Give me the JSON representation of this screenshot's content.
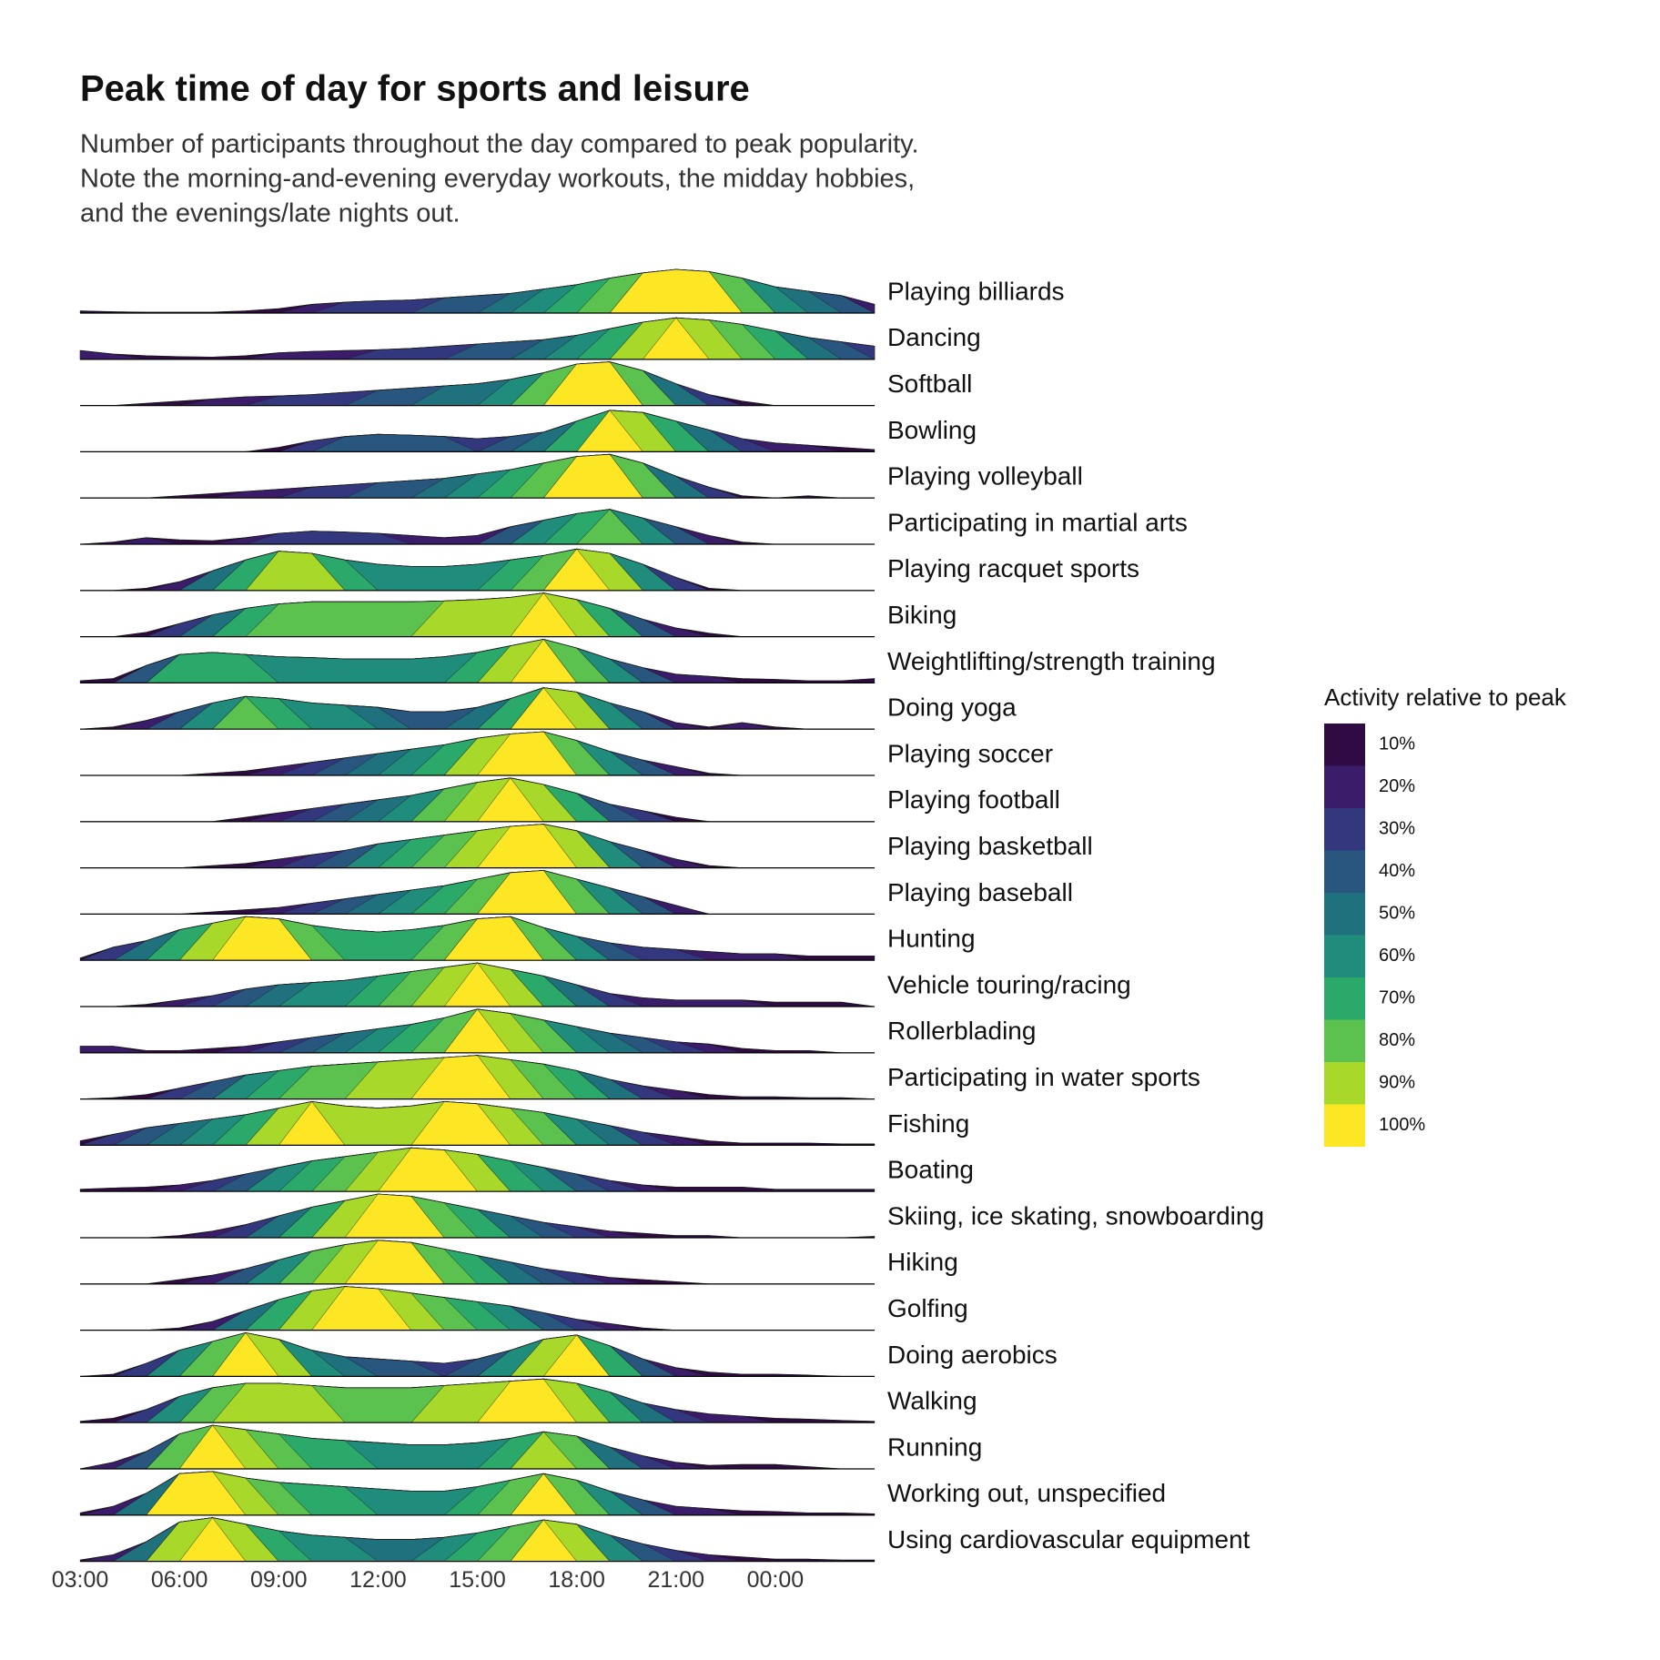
{
  "chart_data": {
    "type": "ridgeline",
    "title": "Peak time of day for sports and leisure",
    "subtitle": [
      "Number of participants throughout the day compared to peak popularity.",
      "Note the morning-and-evening everyday workouts, the midday hobbies,",
      "and the evenings/late nights out."
    ],
    "x": [
      3,
      4,
      5,
      6,
      7,
      8,
      9,
      10,
      11,
      12,
      13,
      14,
      15,
      16,
      17,
      18,
      19,
      20,
      21,
      22,
      23,
      24,
      25,
      26,
      27
    ],
    "xlim": [
      3,
      27
    ],
    "xticks": [
      {
        "value": 3,
        "label": "03:00"
      },
      {
        "value": 6,
        "label": "06:00"
      },
      {
        "value": 9,
        "label": "09:00"
      },
      {
        "value": 12,
        "label": "12:00"
      },
      {
        "value": 15,
        "label": "15:00"
      },
      {
        "value": 18,
        "label": "18:00"
      },
      {
        "value": 21,
        "label": "21:00"
      },
      {
        "value": 24,
        "label": "00:00"
      }
    ],
    "ylim": [
      0,
      100
    ],
    "series": [
      {
        "name": "Playing billiards",
        "values": [
          5,
          3,
          2,
          2,
          2,
          5,
          10,
          20,
          25,
          28,
          30,
          35,
          40,
          45,
          55,
          65,
          80,
          92,
          100,
          95,
          80,
          60,
          50,
          40,
          20
        ]
      },
      {
        "name": "Dancing",
        "values": [
          20,
          12,
          8,
          6,
          5,
          8,
          15,
          18,
          20,
          22,
          25,
          30,
          35,
          40,
          45,
          55,
          70,
          85,
          95,
          90,
          80,
          65,
          50,
          40,
          30
        ]
      },
      {
        "name": "Softball",
        "values": [
          0,
          0,
          5,
          10,
          15,
          20,
          22,
          25,
          30,
          35,
          40,
          45,
          50,
          60,
          75,
          95,
          100,
          80,
          50,
          25,
          10,
          0,
          0,
          0,
          0
        ]
      },
      {
        "name": "Bowling",
        "values": [
          0,
          0,
          0,
          0,
          0,
          0,
          10,
          25,
          35,
          40,
          38,
          35,
          30,
          35,
          45,
          70,
          95,
          90,
          70,
          50,
          30,
          20,
          15,
          10,
          5
        ]
      },
      {
        "name": "Playing volleyball",
        "values": [
          0,
          0,
          0,
          5,
          10,
          15,
          20,
          25,
          30,
          35,
          40,
          45,
          55,
          65,
          80,
          95,
          100,
          80,
          50,
          25,
          5,
          0,
          5,
          0,
          0
        ]
      },
      {
        "name": "Participating in martial arts",
        "values": [
          0,
          5,
          15,
          10,
          8,
          15,
          25,
          30,
          28,
          25,
          20,
          15,
          20,
          40,
          55,
          70,
          80,
          60,
          40,
          20,
          5,
          0,
          0,
          0,
          0
        ]
      },
      {
        "name": "Playing racquet sports",
        "values": [
          0,
          0,
          5,
          20,
          45,
          70,
          90,
          85,
          70,
          60,
          55,
          55,
          60,
          70,
          80,
          95,
          85,
          60,
          30,
          5,
          0,
          0,
          0,
          0,
          0
        ]
      },
      {
        "name": "Biking",
        "values": [
          0,
          0,
          10,
          30,
          50,
          65,
          75,
          80,
          80,
          80,
          80,
          82,
          85,
          90,
          100,
          85,
          65,
          40,
          20,
          8,
          0,
          0,
          0,
          0,
          0
        ]
      },
      {
        "name": "Weightlifting/strength training",
        "values": [
          5,
          10,
          40,
          65,
          70,
          65,
          60,
          58,
          55,
          55,
          55,
          60,
          70,
          85,
          100,
          80,
          55,
          35,
          20,
          15,
          10,
          8,
          5,
          5,
          10
        ]
      },
      {
        "name": "Doing yoga",
        "values": [
          0,
          5,
          20,
          40,
          60,
          75,
          70,
          60,
          55,
          50,
          40,
          40,
          50,
          70,
          95,
          85,
          60,
          40,
          15,
          5,
          15,
          5,
          0,
          0,
          0
        ]
      },
      {
        "name": "Playing soccer",
        "values": [
          0,
          0,
          0,
          0,
          5,
          10,
          20,
          30,
          40,
          50,
          60,
          70,
          85,
          95,
          100,
          80,
          55,
          35,
          20,
          5,
          0,
          0,
          0,
          0,
          0
        ]
      },
      {
        "name": "Playing football",
        "values": [
          0,
          0,
          0,
          0,
          0,
          10,
          20,
          30,
          40,
          50,
          60,
          75,
          90,
          100,
          85,
          65,
          40,
          25,
          10,
          0,
          0,
          0,
          0,
          0,
          0
        ]
      },
      {
        "name": "Playing basketball",
        "values": [
          0,
          0,
          0,
          0,
          5,
          10,
          20,
          30,
          40,
          55,
          65,
          75,
          85,
          95,
          100,
          85,
          60,
          40,
          20,
          5,
          0,
          0,
          0,
          0,
          0
        ]
      },
      {
        "name": "Playing baseball",
        "values": [
          0,
          0,
          0,
          0,
          5,
          10,
          15,
          25,
          35,
          45,
          55,
          65,
          80,
          95,
          100,
          80,
          60,
          40,
          20,
          0,
          0,
          0,
          0,
          0,
          0
        ]
      },
      {
        "name": "Hunting",
        "values": [
          5,
          30,
          45,
          70,
          85,
          100,
          95,
          80,
          70,
          65,
          70,
          80,
          95,
          100,
          75,
          55,
          40,
          30,
          25,
          20,
          15,
          15,
          10,
          10,
          10
        ]
      },
      {
        "name": "Vehicle touring/racing",
        "values": [
          0,
          0,
          5,
          15,
          25,
          40,
          50,
          55,
          60,
          70,
          80,
          90,
          100,
          85,
          70,
          50,
          30,
          20,
          15,
          15,
          15,
          10,
          10,
          10,
          0
        ]
      },
      {
        "name": "Rollerblading",
        "values": [
          15,
          15,
          5,
          5,
          10,
          15,
          25,
          35,
          45,
          55,
          65,
          80,
          100,
          90,
          75,
          60,
          45,
          35,
          25,
          20,
          10,
          5,
          5,
          0,
          0
        ]
      },
      {
        "name": "Participating in water sports",
        "values": [
          0,
          3,
          10,
          25,
          40,
          55,
          65,
          75,
          80,
          85,
          90,
          95,
          100,
          90,
          80,
          65,
          45,
          30,
          20,
          10,
          5,
          5,
          3,
          3,
          0
        ]
      },
      {
        "name": "Fishing",
        "values": [
          10,
          25,
          40,
          50,
          60,
          70,
          85,
          100,
          90,
          85,
          90,
          100,
          95,
          85,
          75,
          60,
          45,
          30,
          20,
          10,
          5,
          5,
          5,
          3,
          3
        ]
      },
      {
        "name": "Boating",
        "values": [
          5,
          8,
          10,
          15,
          25,
          40,
          55,
          70,
          80,
          90,
          100,
          95,
          85,
          70,
          55,
          40,
          25,
          15,
          10,
          10,
          10,
          5,
          5,
          5,
          5
        ]
      },
      {
        "name": "Skiing, ice skating, snowboarding",
        "values": [
          0,
          0,
          0,
          5,
          15,
          30,
          50,
          70,
          85,
          100,
          95,
          80,
          65,
          50,
          35,
          25,
          15,
          10,
          5,
          5,
          0,
          0,
          0,
          0,
          3
        ]
      },
      {
        "name": "Hiking",
        "values": [
          0,
          0,
          0,
          10,
          20,
          35,
          55,
          75,
          90,
          100,
          95,
          80,
          65,
          50,
          35,
          25,
          15,
          10,
          5,
          0,
          0,
          0,
          0,
          0,
          0
        ]
      },
      {
        "name": "Golfing",
        "values": [
          0,
          0,
          0,
          5,
          20,
          45,
          70,
          90,
          100,
          95,
          85,
          75,
          65,
          55,
          40,
          25,
          15,
          5,
          0,
          0,
          0,
          0,
          0,
          0,
          0
        ]
      },
      {
        "name": "Doing aerobics",
        "values": [
          0,
          5,
          30,
          60,
          80,
          100,
          85,
          60,
          45,
          40,
          35,
          30,
          40,
          60,
          85,
          95,
          70,
          40,
          20,
          10,
          5,
          5,
          3,
          0,
          0
        ]
      },
      {
        "name": "Walking",
        "values": [
          3,
          10,
          30,
          60,
          80,
          90,
          90,
          85,
          80,
          80,
          80,
          85,
          90,
          95,
          100,
          90,
          70,
          45,
          30,
          20,
          15,
          10,
          8,
          5,
          3
        ]
      },
      {
        "name": "Running",
        "values": [
          0,
          15,
          40,
          80,
          100,
          90,
          80,
          70,
          65,
          60,
          55,
          55,
          60,
          70,
          85,
          75,
          50,
          30,
          15,
          8,
          10,
          10,
          5,
          0,
          0
        ]
      },
      {
        "name": "Working out, unspecified",
        "values": [
          5,
          20,
          50,
          95,
          100,
          85,
          75,
          70,
          65,
          60,
          55,
          55,
          65,
          80,
          95,
          80,
          55,
          35,
          20,
          15,
          10,
          8,
          5,
          5,
          3
        ]
      },
      {
        "name": "Using cardiovascular equipment",
        "values": [
          3,
          15,
          45,
          90,
          100,
          85,
          70,
          60,
          55,
          50,
          50,
          55,
          65,
          80,
          95,
          85,
          60,
          40,
          25,
          15,
          10,
          5,
          5,
          3,
          3
        ]
      }
    ],
    "legend_title": "Activity relative to peak",
    "levels": [
      {
        "value": 10,
        "label": "10%",
        "color": "#2f0a43"
      },
      {
        "value": 20,
        "label": "20%",
        "color": "#3b1c6a"
      },
      {
        "value": 30,
        "label": "30%",
        "color": "#33387e"
      },
      {
        "value": 40,
        "label": "40%",
        "color": "#28567f"
      },
      {
        "value": 50,
        "label": "50%",
        "color": "#20717e"
      },
      {
        "value": 60,
        "label": "60%",
        "color": "#1f8c7c"
      },
      {
        "value": 70,
        "label": "70%",
        "color": "#2ba96b"
      },
      {
        "value": 80,
        "label": "80%",
        "color": "#5bc14f"
      },
      {
        "value": 90,
        "label": "90%",
        "color": "#a7d82a"
      },
      {
        "value": 100,
        "label": "100%",
        "color": "#fde725"
      }
    ]
  }
}
